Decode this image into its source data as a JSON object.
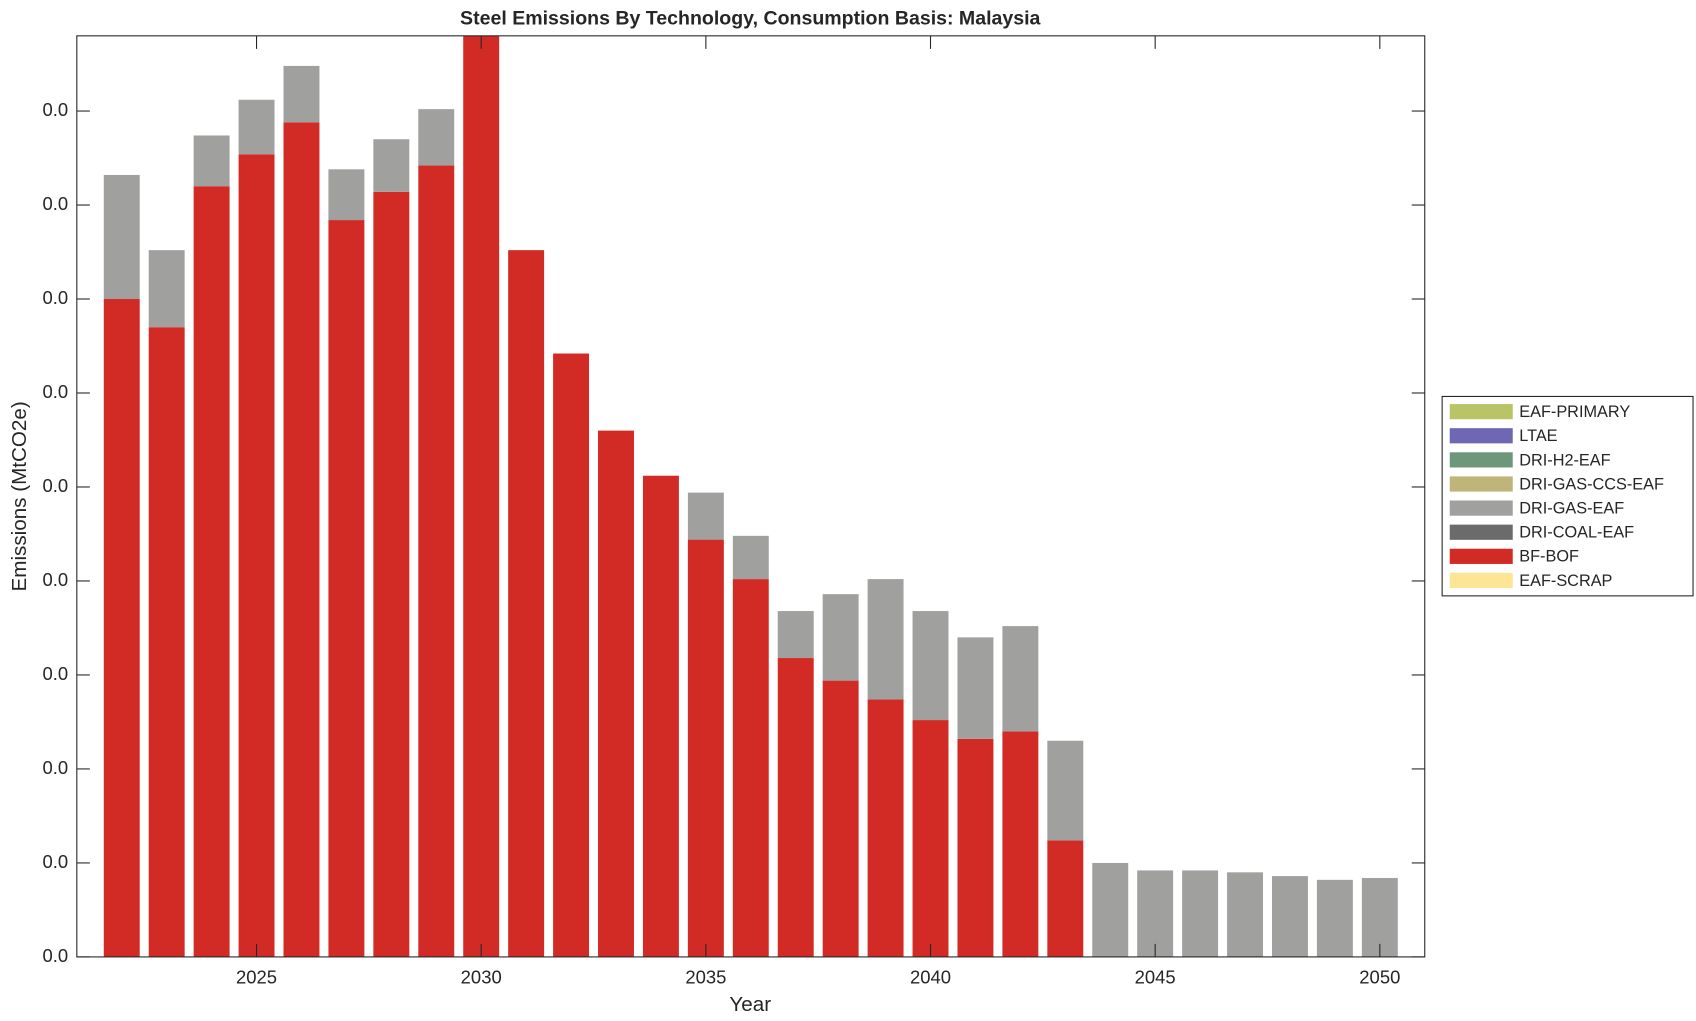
{
  "chart_data": {
    "type": "stacked-bar",
    "title": "Steel Emissions By Technology, Consumption Basis: Malaysia",
    "xlabel": "Year",
    "ylabel": "Emissions (MtCO2e)",
    "x": [
      2022,
      2023,
      2024,
      2025,
      2026,
      2027,
      2028,
      2029,
      2030,
      2031,
      2032,
      2033,
      2034,
      2035,
      2036,
      2037,
      2038,
      2039,
      2040,
      2041,
      2042,
      2043,
      2044,
      2045,
      2046,
      2047,
      2048,
      2049,
      2050
    ],
    "xlim": [
      2021,
      2051
    ],
    "xticks": [
      2025,
      2030,
      2035,
      2040,
      2045,
      2050
    ],
    "ylim": [
      0,
      0.049
    ],
    "yticks": [
      {
        "value": 0,
        "label": "0.0"
      },
      {
        "value": 0.005,
        "label": "0.0"
      },
      {
        "value": 0.01,
        "label": "0.0"
      },
      {
        "value": 0.015,
        "label": "0.0"
      },
      {
        "value": 0.02,
        "label": "0.0"
      },
      {
        "value": 0.025,
        "label": "0.0"
      },
      {
        "value": 0.03,
        "label": "0.0"
      },
      {
        "value": 0.035,
        "label": "0.0"
      },
      {
        "value": 0.04,
        "label": "0.0"
      },
      {
        "value": 0.045,
        "label": "0.0"
      }
    ],
    "series": [
      {
        "name": "EAF-SCRAP",
        "color": "#fde596",
        "values": [
          0,
          0,
          0,
          0,
          0,
          0,
          0,
          0,
          0,
          0,
          0,
          0,
          0,
          0,
          0,
          0,
          0,
          0,
          0,
          0,
          0,
          0,
          0,
          0,
          0,
          0,
          0,
          0,
          0
        ]
      },
      {
        "name": "BF-BOF",
        "color": "#d22b26",
        "values": [
          0.035,
          0.0335,
          0.041,
          0.0427,
          0.0444,
          0.0392,
          0.0407,
          0.0421,
          0.049,
          0.0376,
          0.0321,
          0.028,
          0.0256,
          0.0222,
          0.0201,
          0.0159,
          0.0147,
          0.0137,
          0.0126,
          0.0116,
          0.012,
          0.0062,
          0,
          0,
          0,
          0,
          0,
          0,
          0
        ]
      },
      {
        "name": "DRI-COAL-EAF",
        "color": "#6b6b6b",
        "values": [
          0,
          0,
          0,
          0,
          0,
          0,
          0,
          0,
          0,
          0,
          0,
          0,
          0,
          0,
          0,
          0,
          0,
          0,
          0,
          0,
          0,
          0,
          0,
          0,
          0,
          0,
          0,
          0,
          0
        ]
      },
      {
        "name": "DRI-GAS-EAF",
        "color": "#a0a09e",
        "values": [
          0.0066,
          0.0041,
          0.0027,
          0.0029,
          0.003,
          0.0027,
          0.0028,
          0.003,
          0,
          0,
          0,
          0,
          0,
          0.0025,
          0.0023,
          0.0025,
          0.0046,
          0.0064,
          0.0058,
          0.0054,
          0.0056,
          0.0053,
          0.005,
          0.0046,
          0.0046,
          0.0045,
          0.0043,
          0.0041,
          0.0042
        ]
      },
      {
        "name": "DRI-GAS-CCS-EAF",
        "color": "#bfb57a",
        "values": [
          0,
          0,
          0,
          0,
          0,
          0,
          0,
          0,
          0,
          0,
          0,
          0,
          0,
          0,
          0,
          0,
          0,
          0,
          0,
          0,
          0,
          0,
          0,
          0,
          0,
          0,
          0,
          0,
          0
        ]
      },
      {
        "name": "DRI-H2-EAF",
        "color": "#6e967a",
        "values": [
          0,
          0,
          0,
          0,
          0,
          0,
          0,
          0,
          0,
          0,
          0,
          0,
          0,
          0,
          0,
          0,
          0,
          0,
          0,
          0,
          0,
          0,
          0,
          0,
          0,
          0,
          0,
          0,
          0
        ]
      },
      {
        "name": "LTAE",
        "color": "#6e67b3",
        "values": [
          0,
          0,
          0,
          0,
          0,
          0,
          0,
          0,
          0,
          0,
          0,
          0,
          0,
          0,
          0,
          0,
          0,
          0,
          0,
          0,
          0,
          0,
          0,
          0,
          0,
          0,
          0,
          0,
          0
        ]
      },
      {
        "name": "EAF-PRIMARY",
        "color": "#b8c466",
        "values": [
          0,
          0,
          0,
          0,
          0,
          0,
          0,
          0,
          0,
          0,
          0,
          0,
          0,
          0,
          0,
          0,
          0,
          0,
          0,
          0,
          0,
          0,
          0,
          0,
          0,
          0,
          0,
          0,
          0
        ]
      }
    ]
  }
}
